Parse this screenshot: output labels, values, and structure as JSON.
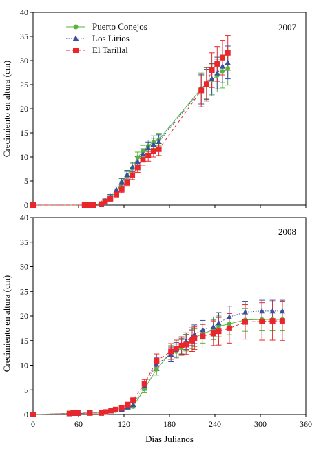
{
  "chart_data": [
    {
      "type": "line",
      "panel_label": "2007",
      "ylabel": "Crecimiento en altura (cm)",
      "xlabel": "",
      "xlim": [
        0,
        360
      ],
      "ylim": [
        0,
        40
      ],
      "xticks": [],
      "yticks": [
        "0",
        "5",
        "10",
        "15",
        "20",
        "25",
        "30",
        "35",
        "40"
      ],
      "error_bars": true,
      "legend": "top-left",
      "series": [
        {
          "name": "Puerto Conejos",
          "color": "#55b43c",
          "marker": "circle",
          "line": "solid",
          "x": [
            0,
            68,
            75,
            80,
            90,
            95,
            102,
            110,
            117,
            124,
            131,
            138,
            145,
            152,
            159,
            166,
            222,
            229,
            236,
            243,
            250,
            257
          ],
          "y": [
            0,
            0,
            0.1,
            0.1,
            0.3,
            0.9,
            1.6,
            2.8,
            4.7,
            6.0,
            7.7,
            9.9,
            11.2,
            12.3,
            13.1,
            13.6,
            24.2,
            25.2,
            26.0,
            26.9,
            27.8,
            28.4
          ],
          "err": [
            0,
            0,
            0,
            0,
            0.2,
            0.3,
            0.4,
            0.6,
            0.8,
            0.9,
            1.0,
            1.1,
            1.2,
            1.2,
            1.3,
            1.3,
            3.2,
            3.3,
            3.3,
            3.4,
            3.5,
            3.5
          ]
        },
        {
          "name": "Los Lirios",
          "color": "#3a4fa0",
          "marker": "triangle",
          "line": "dotted",
          "x": [
            0,
            68,
            75,
            80,
            90,
            95,
            102,
            110,
            117,
            124,
            131,
            138,
            145,
            152,
            159,
            166,
            222,
            229,
            236,
            243,
            250,
            257
          ],
          "y": [
            0,
            0,
            0.1,
            0.1,
            0.4,
            1.0,
            1.8,
            3.2,
            4.8,
            6.3,
            7.9,
            9.0,
            10.6,
            11.9,
            12.6,
            13.2,
            24.0,
            25.1,
            26.2,
            27.4,
            28.8,
            29.6
          ],
          "err": [
            0,
            0,
            0,
            0,
            0.2,
            0.3,
            0.4,
            0.6,
            0.8,
            0.9,
            1.0,
            1.1,
            1.1,
            1.2,
            1.3,
            1.4,
            3.0,
            3.1,
            3.2,
            3.3,
            3.4,
            3.4
          ]
        },
        {
          "name": "El Tarillal",
          "color": "#e8262b",
          "marker": "square",
          "line": "dashed",
          "x": [
            0,
            68,
            75,
            80,
            90,
            95,
            102,
            110,
            117,
            124,
            131,
            138,
            145,
            152,
            159,
            166,
            222,
            229,
            236,
            243,
            250,
            257
          ],
          "y": [
            0,
            0,
            0,
            0,
            0.2,
            0.7,
            1.3,
            2.2,
            3.3,
            4.6,
            6.2,
            7.8,
            9.4,
            10.3,
            11.2,
            11.6,
            23.8,
            25.1,
            28.0,
            29.3,
            30.6,
            31.6
          ],
          "err": [
            0,
            0,
            0,
            0,
            0.2,
            0.3,
            0.4,
            0.5,
            0.7,
            0.8,
            0.9,
            1.0,
            1.1,
            1.2,
            1.2,
            1.3,
            3.4,
            3.5,
            3.6,
            3.6,
            3.6,
            3.6
          ]
        }
      ]
    },
    {
      "type": "line",
      "panel_label": "2008",
      "ylabel": "Crecimiento en altura (cm)",
      "xlabel": "Dias Julianos",
      "xlim": [
        0,
        360
      ],
      "ylim": [
        0,
        40
      ],
      "xticks": [
        "0",
        "60",
        "120",
        "180",
        "240",
        "300",
        "360"
      ],
      "yticks": [
        "0",
        "5",
        "10",
        "15",
        "20",
        "25",
        "30",
        "35",
        "40"
      ],
      "error_bars": true,
      "series": [
        {
          "name": "Puerto Conejos",
          "color": "#55b43c",
          "marker": "circle",
          "line": "solid",
          "x": [
            0,
            48,
            53,
            59,
            75,
            90,
            96,
            103,
            109,
            117,
            125,
            132,
            147,
            163,
            182,
            189,
            196,
            202,
            210,
            213,
            224,
            238,
            245,
            259,
            280,
            302,
            316,
            329
          ],
          "y": [
            0,
            0.2,
            0.2,
            0.2,
            0.3,
            0.3,
            0.4,
            0.7,
            0.8,
            1.0,
            1.3,
            1.6,
            5.2,
            9.2,
            12.6,
            12.8,
            13.6,
            14.6,
            15.2,
            15.6,
            16.4,
            17.2,
            17.9,
            18.4,
            19.2,
            19.3,
            19.3,
            19.3
          ],
          "err": [
            0,
            0,
            0,
            0,
            0,
            0.1,
            0.1,
            0.2,
            0.2,
            0.2,
            0.3,
            0.3,
            0.8,
            1.2,
            1.4,
            1.5,
            1.6,
            1.7,
            1.8,
            1.8,
            1.9,
            2.0,
            2.1,
            2.2,
            2.3,
            2.3,
            2.3,
            2.3
          ]
        },
        {
          "name": "Los Lirios",
          "color": "#3a4fa0",
          "marker": "triangle",
          "line": "dotted",
          "x": [
            0,
            48,
            53,
            59,
            75,
            90,
            96,
            103,
            109,
            117,
            125,
            132,
            147,
            163,
            182,
            189,
            196,
            202,
            210,
            213,
            224,
            238,
            245,
            259,
            280,
            302,
            316,
            329
          ],
          "y": [
            0,
            0.2,
            0.2,
            0.2,
            0.3,
            0.3,
            0.5,
            0.7,
            0.9,
            1.0,
            1.5,
            2.0,
            5.8,
            10.2,
            12.2,
            13.1,
            13.9,
            14.9,
            15.8,
            16.3,
            17.2,
            17.8,
            18.6,
            19.8,
            20.8,
            21.0,
            21.0,
            21.0
          ],
          "err": [
            0,
            0,
            0,
            0,
            0,
            0.1,
            0.1,
            0.2,
            0.2,
            0.2,
            0.3,
            0.4,
            0.9,
            1.3,
            1.5,
            1.5,
            1.6,
            1.7,
            1.8,
            1.9,
            1.9,
            2.0,
            2.1,
            2.2,
            2.2,
            2.2,
            2.2,
            2.2
          ]
        },
        {
          "name": "El Tarillal",
          "color": "#e8262b",
          "marker": "square",
          "line": "dashed",
          "x": [
            0,
            48,
            53,
            59,
            75,
            90,
            96,
            103,
            109,
            117,
            125,
            132,
            147,
            163,
            182,
            189,
            196,
            202,
            210,
            213,
            224,
            238,
            245,
            259,
            280,
            302,
            316,
            329
          ],
          "y": [
            0,
            0.2,
            0.3,
            0.3,
            0.3,
            0.3,
            0.5,
            0.8,
            1.0,
            1.3,
            2.0,
            2.9,
            6.2,
            10.9,
            12.8,
            13.4,
            14.0,
            14.2,
            15.0,
            15.5,
            15.9,
            16.5,
            16.9,
            17.5,
            18.8,
            18.9,
            19.0,
            19.0
          ],
          "err": [
            0,
            0,
            0,
            0,
            0,
            0.1,
            0.1,
            0.2,
            0.2,
            0.3,
            0.3,
            0.4,
            0.9,
            1.4,
            1.6,
            1.7,
            1.8,
            2.0,
            2.2,
            2.3,
            2.4,
            2.5,
            2.8,
            3.0,
            3.5,
            3.8,
            3.9,
            4.0
          ]
        }
      ]
    }
  ]
}
